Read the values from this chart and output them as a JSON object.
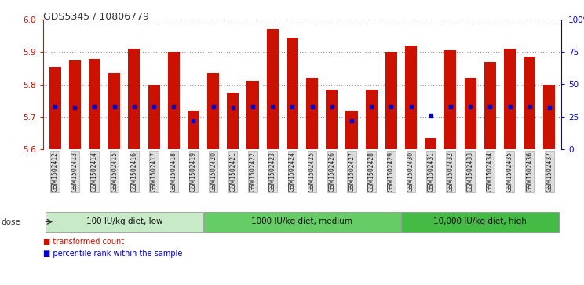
{
  "title": "GDS5345 / 10806779",
  "samples": [
    "GSM1502412",
    "GSM1502413",
    "GSM1502414",
    "GSM1502415",
    "GSM1502416",
    "GSM1502417",
    "GSM1502418",
    "GSM1502419",
    "GSM1502420",
    "GSM1502421",
    "GSM1502422",
    "GSM1502423",
    "GSM1502424",
    "GSM1502425",
    "GSM1502426",
    "GSM1502427",
    "GSM1502428",
    "GSM1502429",
    "GSM1502430",
    "GSM1502431",
    "GSM1502432",
    "GSM1502433",
    "GSM1502434",
    "GSM1502435",
    "GSM1502436",
    "GSM1502437"
  ],
  "bar_values": [
    5.855,
    5.875,
    5.878,
    5.835,
    5.91,
    5.8,
    5.9,
    5.718,
    5.835,
    5.775,
    5.81,
    5.97,
    5.945,
    5.82,
    5.785,
    5.718,
    5.785,
    5.9,
    5.92,
    5.635,
    5.905,
    5.82,
    5.87,
    5.91,
    5.885,
    5.8
  ],
  "percentile_values": [
    33,
    32,
    33,
    33,
    33,
    33,
    33,
    22,
    33,
    32,
    33,
    33,
    33,
    33,
    33,
    22,
    33,
    33,
    33,
    26,
    33,
    33,
    33,
    33,
    33,
    32
  ],
  "ymin": 5.6,
  "ymax": 6.0,
  "yticks": [
    5.6,
    5.7,
    5.8,
    5.9,
    6.0
  ],
  "right_yticks": [
    0,
    25,
    50,
    75,
    100
  ],
  "right_yticklabels": [
    "0",
    "25",
    "50",
    "75",
    "100%"
  ],
  "bar_color": "#cc1100",
  "dot_color": "#0000cc",
  "groups": [
    {
      "label": "100 IU/kg diet, low",
      "start": 0,
      "end": 8,
      "color": "#c8eac8"
    },
    {
      "label": "1000 IU/kg diet, medium",
      "start": 8,
      "end": 18,
      "color": "#66cc66"
    },
    {
      "label": "10,000 IU/kg diet, high",
      "start": 18,
      "end": 26,
      "color": "#44bb44"
    }
  ],
  "dose_label": "dose",
  "legend_items": [
    {
      "label": "transformed count",
      "color": "#cc1100"
    },
    {
      "label": "percentile rank within the sample",
      "color": "#0000cc"
    }
  ],
  "tick_label_color": "#cc1100",
  "right_tick_color": "#0000cc",
  "background_color": "#ffffff",
  "plot_bg_color": "#ffffff",
  "xtick_box_color": "#dddddd",
  "xtick_box_edge": "#999999"
}
